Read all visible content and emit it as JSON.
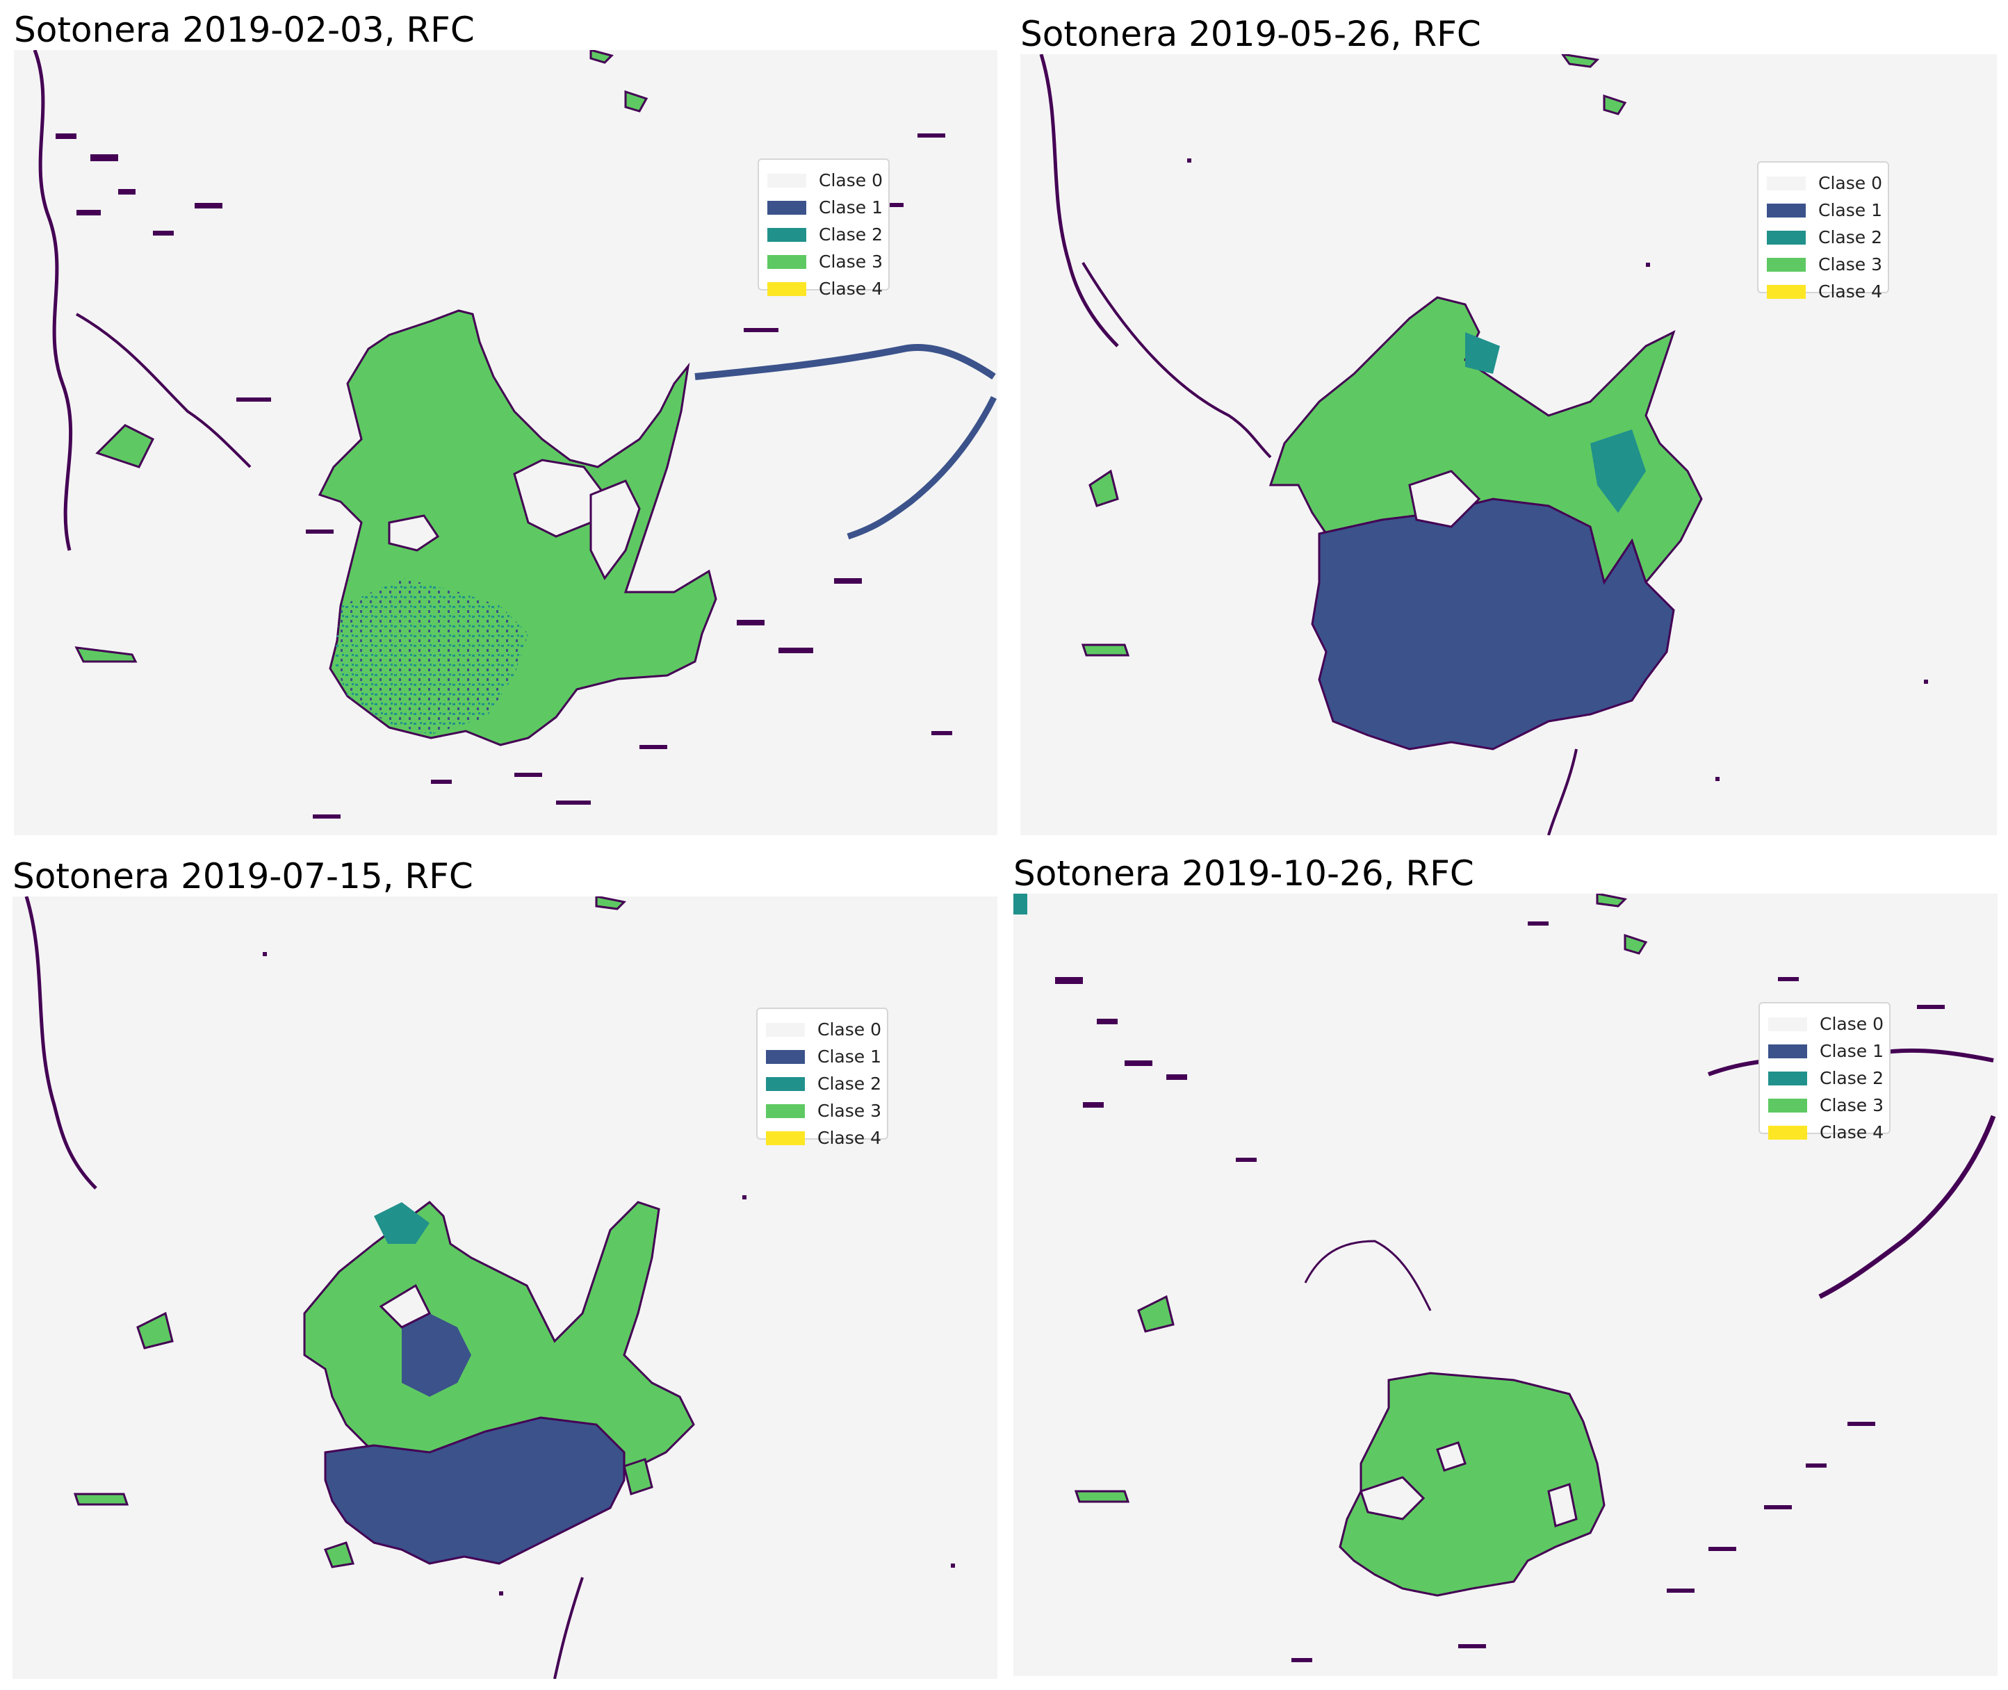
{
  "panels": [
    {
      "title": "Sotonera 2019-02-03, RFC",
      "legend": [
        {
          "label": "Clase 0",
          "color": "#f4f4f4"
        },
        {
          "label": "Clase 1",
          "color": "#3b528b"
        },
        {
          "label": "Clase 2",
          "color": "#21918c"
        },
        {
          "label": "Clase 3",
          "color": "#5ec962"
        },
        {
          "label": "Clase 4",
          "color": "#fde725"
        }
      ]
    },
    {
      "title": "Sotonera 2019-05-26, RFC",
      "legend": [
        {
          "label": "Clase 0",
          "color": "#f4f4f4"
        },
        {
          "label": "Clase 1",
          "color": "#3b528b"
        },
        {
          "label": "Clase 2",
          "color": "#21918c"
        },
        {
          "label": "Clase 3",
          "color": "#5ec962"
        },
        {
          "label": "Clase 4",
          "color": "#fde725"
        }
      ]
    },
    {
      "title": "Sotonera 2019-07-15, RFC",
      "legend": [
        {
          "label": "Clase 0",
          "color": "#f4f4f4"
        },
        {
          "label": "Clase 1",
          "color": "#3b528b"
        },
        {
          "label": "Clase 2",
          "color": "#21918c"
        },
        {
          "label": "Clase 3",
          "color": "#5ec962"
        },
        {
          "label": "Clase 4",
          "color": "#fde725"
        }
      ]
    },
    {
      "title": "Sotonera 2019-10-26, RFC",
      "legend": [
        {
          "label": "Clase 0",
          "color": "#f4f4f4"
        },
        {
          "label": "Clase 1",
          "color": "#3b528b"
        },
        {
          "label": "Clase 2",
          "color": "#21918c"
        },
        {
          "label": "Clase 3",
          "color": "#5ec962"
        },
        {
          "label": "Clase 4",
          "color": "#fde725"
        }
      ]
    }
  ],
  "colors": {
    "background": "#f4f4f4",
    "outline": "#440154",
    "clase_1": "#3b528b",
    "clase_2": "#21918c",
    "clase_3": "#5ec962"
  }
}
